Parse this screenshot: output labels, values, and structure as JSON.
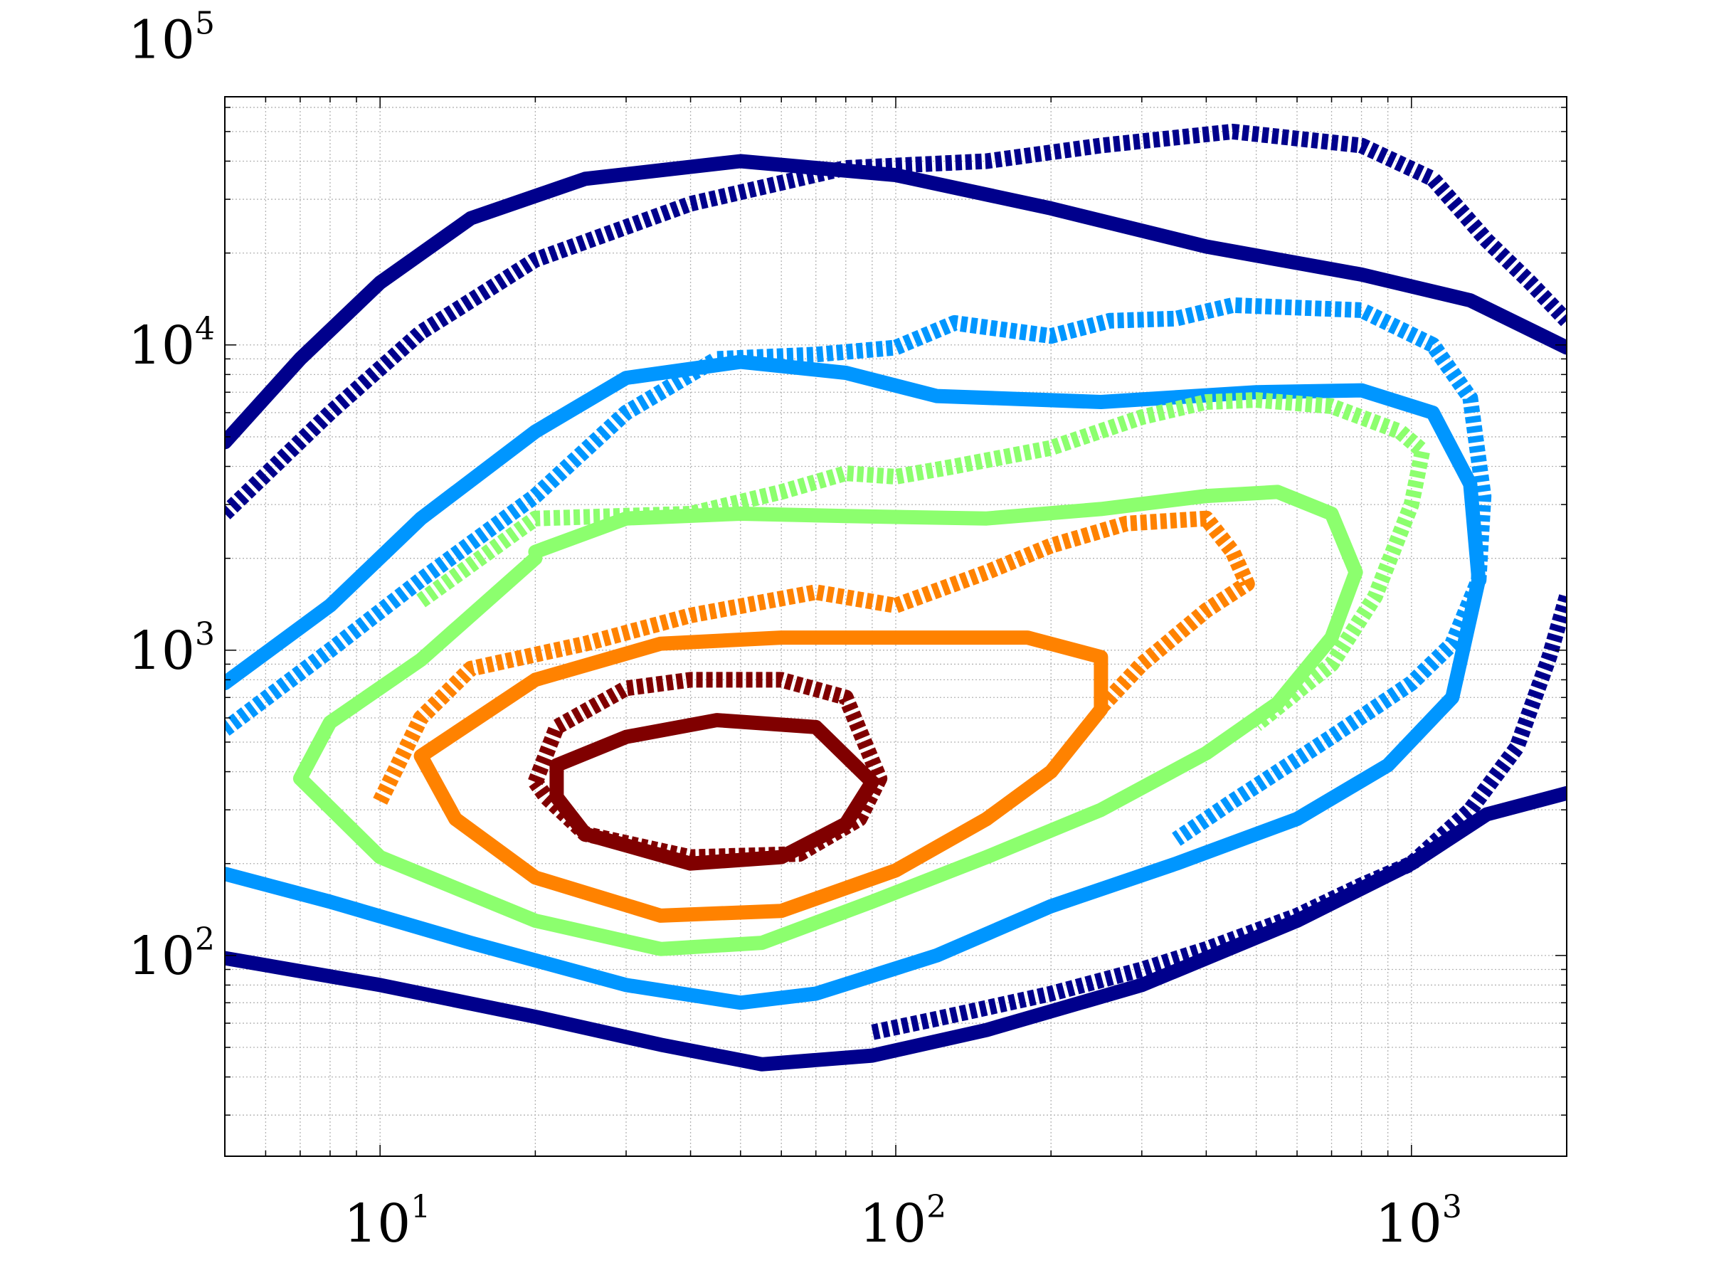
{
  "chart_data": {
    "type": "line",
    "title": "",
    "xlabel": "",
    "ylabel": "",
    "x_scale": "log",
    "y_scale": "log",
    "xlim": [
      5,
      2000
    ],
    "ylim": [
      22,
      65000
    ],
    "grid": true,
    "x_ticks": [
      {
        "value": 10,
        "base": "10",
        "exp": "1"
      },
      {
        "value": 100,
        "base": "10",
        "exp": "2"
      },
      {
        "value": 1000,
        "base": "10",
        "exp": "3"
      }
    ],
    "y_ticks": [
      {
        "value": 100,
        "base": "10",
        "exp": "2"
      },
      {
        "value": 1000,
        "base": "10",
        "exp": "3"
      },
      {
        "value": 10000,
        "base": "10",
        "exp": "4"
      },
      {
        "value": 100000,
        "base": "10",
        "exp": "5"
      }
    ],
    "colors": {
      "navy": "#00008c",
      "blue": "#0096ff",
      "green": "#8cff6e",
      "orange": "#ff8200",
      "darkred": "#800000"
    },
    "series": [
      {
        "color": "#00008c",
        "style": "solid",
        "points": [
          [
            5,
            4800
          ],
          [
            7,
            9000
          ],
          [
            10,
            16000
          ],
          [
            15,
            26000
          ],
          [
            25,
            35000
          ],
          [
            50,
            40000
          ],
          [
            100,
            36000
          ],
          [
            200,
            28000
          ],
          [
            400,
            21000
          ],
          [
            800,
            17000
          ],
          [
            1300,
            14000
          ],
          [
            2000,
            9800
          ]
        ]
      },
      {
        "color": "#00008c",
        "style": "solid",
        "points": [
          [
            5,
            98
          ],
          [
            10,
            80
          ],
          [
            20,
            63
          ],
          [
            35,
            51
          ],
          [
            55,
            44
          ],
          [
            90,
            47
          ],
          [
            150,
            57
          ],
          [
            300,
            80
          ],
          [
            600,
            130
          ],
          [
            1000,
            200
          ],
          [
            1400,
            290
          ],
          [
            2000,
            340
          ]
        ]
      },
      {
        "color": "#00008c",
        "style": "dashed",
        "points": [
          [
            5,
            2800
          ],
          [
            8,
            6000
          ],
          [
            12,
            11000
          ],
          [
            20,
            19000
          ],
          [
            40,
            29000
          ],
          [
            80,
            38000
          ],
          [
            150,
            40000
          ],
          [
            250,
            45000
          ],
          [
            450,
            50000
          ],
          [
            800,
            45000
          ],
          [
            1100,
            35000
          ],
          [
            1400,
            22000
          ],
          [
            1700,
            16000
          ],
          [
            2000,
            12000
          ]
        ]
      },
      {
        "color": "#00008c",
        "style": "dashed",
        "points": [
          [
            2000,
            1500
          ],
          [
            1850,
            950
          ],
          [
            1600,
            480
          ],
          [
            1300,
            300
          ],
          [
            1000,
            200
          ],
          [
            800,
            170
          ],
          [
            600,
            135
          ],
          [
            400,
            105
          ],
          [
            300,
            90
          ],
          [
            200,
            75
          ],
          [
            120,
            62
          ],
          [
            90,
            56
          ]
        ]
      },
      {
        "color": "#0096ff",
        "style": "solid",
        "points": [
          [
            5,
            780
          ],
          [
            8,
            1400
          ],
          [
            12,
            2700
          ],
          [
            20,
            5200
          ],
          [
            30,
            7800
          ],
          [
            50,
            8800
          ],
          [
            80,
            8100
          ],
          [
            120,
            6800
          ],
          [
            250,
            6500
          ],
          [
            500,
            7000
          ],
          [
            800,
            7100
          ],
          [
            1100,
            6000
          ],
          [
            1300,
            3500
          ],
          [
            1350,
            1700
          ],
          [
            1200,
            700
          ],
          [
            900,
            420
          ],
          [
            600,
            280
          ],
          [
            350,
            200
          ],
          [
            200,
            145
          ],
          [
            120,
            100
          ],
          [
            70,
            75
          ],
          [
            50,
            70
          ],
          [
            30,
            80
          ],
          [
            15,
            110
          ],
          [
            8,
            150
          ],
          [
            5,
            185
          ]
        ]
      },
      {
        "color": "#0096ff",
        "style": "dashed",
        "points": [
          [
            5,
            550
          ],
          [
            8,
            1000
          ],
          [
            12,
            1700
          ],
          [
            20,
            3200
          ],
          [
            30,
            6000
          ],
          [
            45,
            9000
          ],
          [
            70,
            9300
          ],
          [
            100,
            9800
          ],
          [
            130,
            11800
          ],
          [
            200,
            10700
          ],
          [
            260,
            12000
          ],
          [
            350,
            12200
          ],
          [
            450,
            13500
          ],
          [
            800,
            13000
          ],
          [
            1100,
            10000
          ],
          [
            1300,
            6700
          ],
          [
            1380,
            3200
          ],
          [
            1350,
            1700
          ],
          [
            1200,
            1050
          ],
          [
            1000,
            780
          ],
          [
            700,
            520
          ],
          [
            450,
            320
          ],
          [
            350,
            240
          ]
        ]
      },
      {
        "color": "#8cff6e",
        "style": "solid",
        "points": [
          [
            20,
            2100
          ],
          [
            30,
            2700
          ],
          [
            50,
            2800
          ],
          [
            80,
            2750
          ],
          [
            150,
            2700
          ],
          [
            250,
            2900
          ],
          [
            400,
            3200
          ],
          [
            550,
            3300
          ],
          [
            700,
            2800
          ],
          [
            780,
            1800
          ],
          [
            700,
            1100
          ],
          [
            550,
            670
          ],
          [
            400,
            460
          ],
          [
            250,
            300
          ],
          [
            150,
            210
          ],
          [
            90,
            150
          ],
          [
            55,
            110
          ],
          [
            35,
            105
          ],
          [
            20,
            130
          ],
          [
            10,
            210
          ],
          [
            7,
            380
          ],
          [
            8,
            580
          ],
          [
            12,
            930
          ],
          [
            20,
            2000
          ]
        ]
      },
      {
        "color": "#8cff6e",
        "style": "dashed",
        "points": [
          [
            12,
            1450
          ],
          [
            20,
            2700
          ],
          [
            40,
            2800
          ],
          [
            60,
            3300
          ],
          [
            80,
            3800
          ],
          [
            100,
            3700
          ],
          [
            130,
            4000
          ],
          [
            200,
            4600
          ],
          [
            300,
            5800
          ],
          [
            400,
            6500
          ],
          [
            500,
            6600
          ],
          [
            700,
            6300
          ],
          [
            950,
            5200
          ],
          [
            1050,
            4500
          ],
          [
            1000,
            3000
          ],
          [
            850,
            1500
          ],
          [
            700,
            900
          ],
          [
            500,
            570
          ]
        ]
      },
      {
        "color": "#ff8200",
        "style": "solid",
        "points": [
          [
            12,
            450
          ],
          [
            20,
            800
          ],
          [
            35,
            1050
          ],
          [
            60,
            1100
          ],
          [
            100,
            1100
          ],
          [
            180,
            1100
          ],
          [
            250,
            950
          ],
          [
            250,
            640
          ],
          [
            200,
            400
          ],
          [
            150,
            280
          ],
          [
            100,
            190
          ],
          [
            60,
            140
          ],
          [
            35,
            135
          ],
          [
            20,
            180
          ],
          [
            14,
            280
          ],
          [
            12,
            450
          ]
        ]
      },
      {
        "color": "#ff8200",
        "style": "dashed",
        "points": [
          [
            10,
            320
          ],
          [
            12,
            600
          ],
          [
            15,
            870
          ],
          [
            25,
            1050
          ],
          [
            40,
            1300
          ],
          [
            70,
            1550
          ],
          [
            100,
            1400
          ],
          [
            150,
            1800
          ],
          [
            200,
            2200
          ],
          [
            280,
            2600
          ],
          [
            400,
            2700
          ],
          [
            450,
            2100
          ],
          [
            480,
            1650
          ],
          [
            400,
            1350
          ],
          [
            300,
            900
          ],
          [
            250,
            650
          ]
        ]
      },
      {
        "color": "#800000",
        "style": "solid",
        "points": [
          [
            22,
            420
          ],
          [
            30,
            520
          ],
          [
            45,
            590
          ],
          [
            70,
            560
          ],
          [
            90,
            370
          ],
          [
            80,
            270
          ],
          [
            60,
            210
          ],
          [
            40,
            200
          ],
          [
            25,
            250
          ],
          [
            22,
            330
          ],
          [
            22,
            420
          ]
        ]
      },
      {
        "color": "#800000",
        "style": "dashed",
        "points": [
          [
            20,
            370
          ],
          [
            22,
            560
          ],
          [
            30,
            750
          ],
          [
            40,
            800
          ],
          [
            60,
            800
          ],
          [
            80,
            700
          ],
          [
            93,
            380
          ],
          [
            85,
            280
          ],
          [
            65,
            215
          ],
          [
            40,
            210
          ],
          [
            25,
            250
          ],
          [
            21,
            330
          ],
          [
            20,
            370
          ]
        ]
      }
    ]
  }
}
